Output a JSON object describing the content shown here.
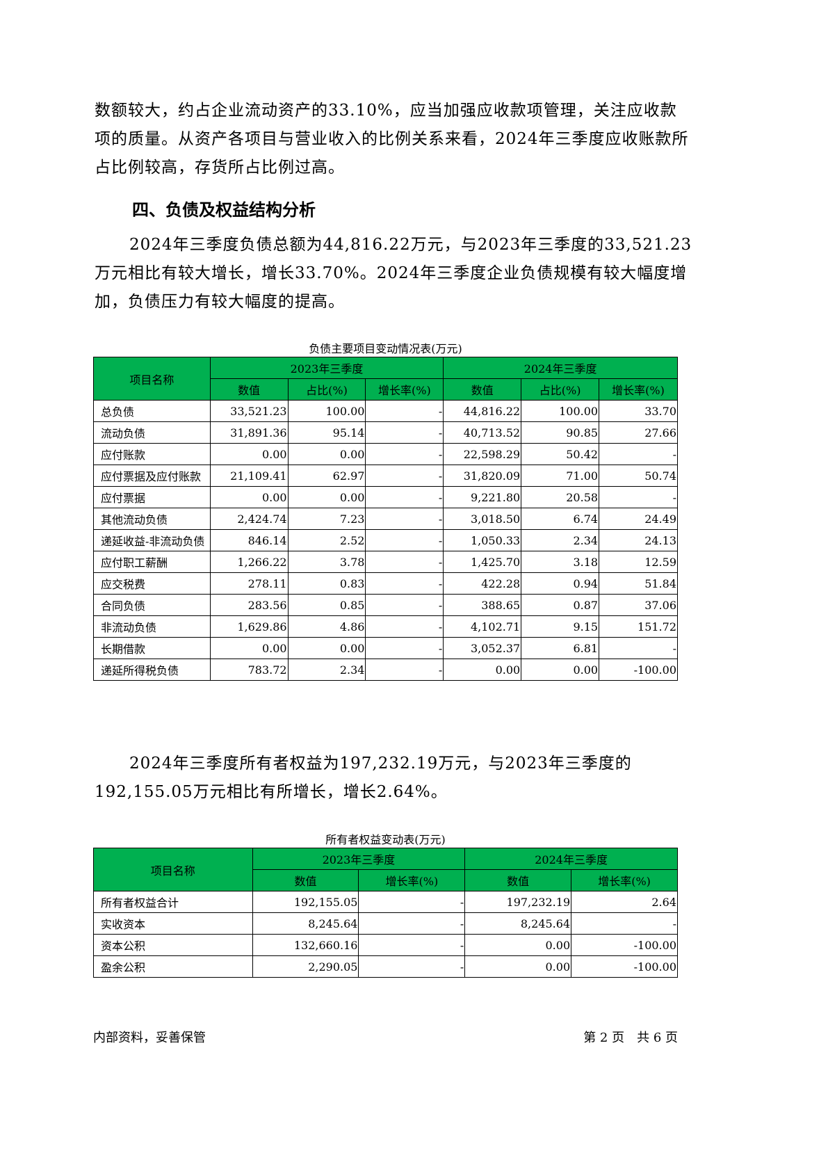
{
  "intro": "数额较大，约占企业流动资产的33.10%，应当加强应收款项管理，关注应收款项的质量。从资产各项目与营业收入的比例关系来看，2024年三季度应收账款所占比例较高，存货所占比例过高。",
  "heading": "四、负债及权益结构分析",
  "para1": "2024年三季度负债总额为44,816.22万元，与2023年三季度的33,521.23万元相比有较大增长，增长33.70%。2024年三季度企业负债规模有较大幅度增加，负债压力有较大幅度的提高。",
  "table1": {
    "caption": "负债主要项目变动情况表(万元)",
    "col_name": "项目名称",
    "period1": "2023年三季度",
    "period2": "2024年三季度",
    "sub": [
      "数值",
      "占比(%)",
      "增长率(%)"
    ],
    "rows": [
      [
        "总负债",
        "33,521.23",
        "100.00",
        "-",
        "44,816.22",
        "100.00",
        "33.70"
      ],
      [
        "流动负债",
        "31,891.36",
        "95.14",
        "-",
        "40,713.52",
        "90.85",
        "27.66"
      ],
      [
        "应付账款",
        "0.00",
        "0.00",
        "-",
        "22,598.29",
        "50.42",
        "-"
      ],
      [
        "应付票据及应付账款",
        "21,109.41",
        "62.97",
        "-",
        "31,820.09",
        "71.00",
        "50.74"
      ],
      [
        "应付票据",
        "0.00",
        "0.00",
        "-",
        "9,221.80",
        "20.58",
        "-"
      ],
      [
        "其他流动负债",
        "2,424.74",
        "7.23",
        "-",
        "3,018.50",
        "6.74",
        "24.49"
      ],
      [
        "递延收益-非流动负债",
        "846.14",
        "2.52",
        "-",
        "1,050.33",
        "2.34",
        "24.13"
      ],
      [
        "应付职工薪酬",
        "1,266.22",
        "3.78",
        "-",
        "1,425.70",
        "3.18",
        "12.59"
      ],
      [
        "应交税费",
        "278.11",
        "0.83",
        "-",
        "422.28",
        "0.94",
        "51.84"
      ],
      [
        "合同负债",
        "283.56",
        "0.85",
        "-",
        "388.65",
        "0.87",
        "37.06"
      ],
      [
        "非流动负债",
        "1,629.86",
        "4.86",
        "-",
        "4,102.71",
        "9.15",
        "151.72"
      ],
      [
        "长期借款",
        "0.00",
        "0.00",
        "-",
        "3,052.37",
        "6.81",
        "-"
      ],
      [
        "递延所得税负债",
        "783.72",
        "2.34",
        "-",
        "0.00",
        "0.00",
        "-100.00"
      ]
    ]
  },
  "para2": "2024年三季度所有者权益为197,232.19万元，与2023年三季度的192,155.05万元相比有所增长，增长2.64%。",
  "table2": {
    "caption": "所有者权益变动表(万元)",
    "col_name": "项目名称",
    "period1": "2023年三季度",
    "period2": "2024年三季度",
    "sub": [
      "数值",
      "增长率(%)"
    ],
    "rows": [
      [
        "所有者权益合计",
        "192,155.05",
        "-",
        "197,232.19",
        "2.64"
      ],
      [
        "实收资本",
        "8,245.64",
        "-",
        "8,245.64",
        "-"
      ],
      [
        "资本公积",
        "132,660.16",
        "-",
        "0.00",
        "-100.00"
      ],
      [
        "盈余公积",
        "2,290.05",
        "-",
        "0.00",
        "-100.00"
      ]
    ]
  },
  "footer": {
    "left": "内部资料，妥善保管",
    "right": "第 2 页　共 6 页"
  }
}
